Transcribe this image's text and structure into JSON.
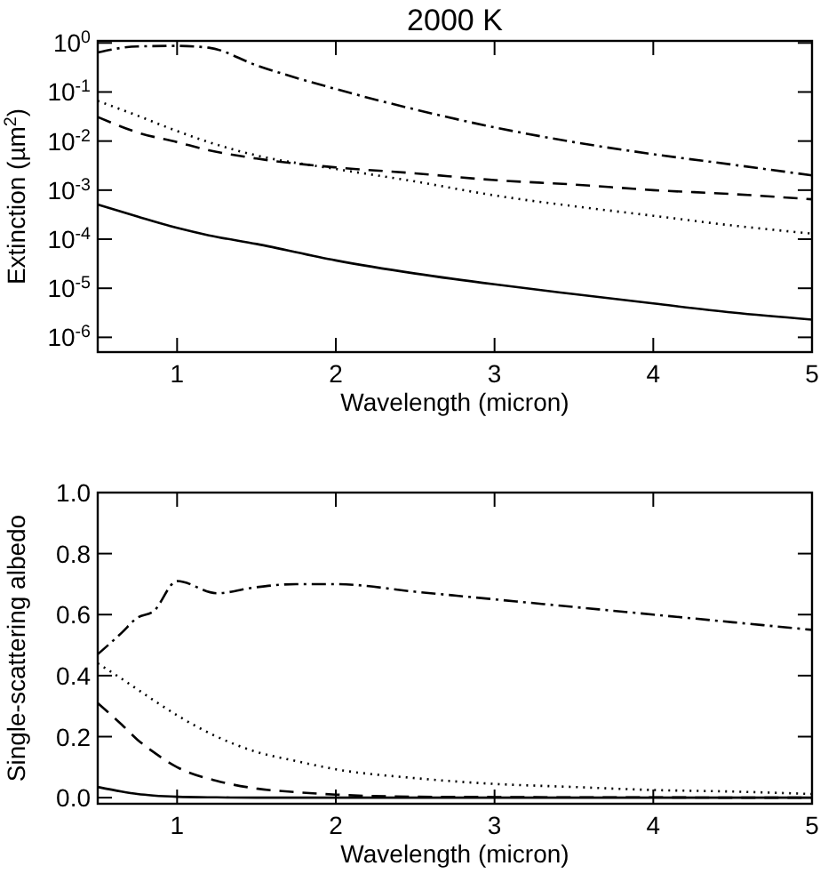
{
  "chart_data": [
    {
      "type": "line",
      "title": "2000 K",
      "xlabel": "Wavelength (micron)",
      "ylabel": "Extinction (µm$^{2}$)",
      "log": "y",
      "xlim": [
        0.5,
        5
      ],
      "xticks": [
        1,
        2,
        3,
        4,
        5
      ],
      "ylim": [
        5e-07,
        1.1
      ],
      "yticks": [
        {
          "value": 1,
          "label": "10$^{0}$"
        },
        {
          "value": 0.1,
          "label": "10$^{-1}$"
        },
        {
          "value": 0.01,
          "label": "10$^{-2}$"
        },
        {
          "value": 0.001,
          "label": "10$^{-3}$"
        },
        {
          "value": 0.0001,
          "label": "10$^{-4}$"
        },
        {
          "value": 1e-05,
          "label": "10$^{-5}$"
        },
        {
          "value": 1e-06,
          "label": "10$^{-6}$"
        }
      ],
      "grid": false,
      "x": [
        0.5,
        0.75,
        1,
        1.2,
        1.5,
        2,
        2.5,
        3,
        3.5,
        4,
        4.5,
        5
      ],
      "series": [
        {
          "color": "#000000",
          "line_style": "solid",
          "values": [
            0.00051,
            0.00029,
            0.00017,
            0.00012,
            8e-05,
            3.7e-05,
            2e-05,
            1.2e-05,
            7.6e-06,
            4.9e-06,
            3.2e-06,
            2.3e-06
          ]
        },
        {
          "color": "#000000",
          "line_style": "dotted",
          "values": [
            0.066,
            0.033,
            0.016,
            0.0095,
            0.0051,
            0.0027,
            0.0015,
            0.00078,
            0.00047,
            0.0003,
            0.00019,
            0.00013
          ]
        },
        {
          "color": "#000000",
          "line_style": "dashed",
          "values": [
            0.031,
            0.015,
            0.0095,
            0.0065,
            0.0044,
            0.0029,
            0.0022,
            0.0016,
            0.0013,
            0.001,
            0.00083,
            0.00065
          ]
        },
        {
          "color": "#000000",
          "line_style": "dashdot",
          "values": [
            0.64,
            0.85,
            0.87,
            0.8,
            0.35,
            0.115,
            0.044,
            0.019,
            0.0095,
            0.0054,
            0.0033,
            0.002
          ]
        }
      ]
    },
    {
      "type": "line",
      "xlabel": "Wavelength (micron)",
      "ylabel": "Single-scattering albedo",
      "xlim": [
        0.5,
        5
      ],
      "xticks": [
        1,
        2,
        3,
        4,
        5
      ],
      "ylim": [
        -0.02,
        1.0
      ],
      "yticks": [
        {
          "value": 0,
          "label": "0.0"
        },
        {
          "value": 0.2,
          "label": "0.2"
        },
        {
          "value": 0.4,
          "label": "0.4"
        },
        {
          "value": 0.6,
          "label": "0.6"
        },
        {
          "value": 0.8,
          "label": "0.8"
        },
        {
          "value": 1,
          "label": "1.0"
        }
      ],
      "grid": false,
      "x": [
        0.5,
        0.65,
        0.75,
        0.85,
        1,
        1.25,
        1.5,
        1.75,
        2,
        2.5,
        3,
        3.5,
        4,
        4.5,
        5
      ],
      "series": [
        {
          "color": "#000000",
          "line_style": "solid",
          "values": [
            0.035,
            0.02,
            0.012,
            0.007,
            0.003,
            0.001,
            0,
            0,
            0,
            0,
            0,
            0,
            0,
            0,
            0
          ]
        },
        {
          "color": "#000000",
          "line_style": "dotted",
          "values": [
            0.44,
            0.39,
            0.355,
            0.32,
            0.27,
            0.2,
            0.15,
            0.12,
            0.093,
            0.064,
            0.045,
            0.035,
            0.025,
            0.02,
            0.012
          ]
        },
        {
          "color": "#000000",
          "line_style": "dashed",
          "values": [
            0.31,
            0.24,
            0.19,
            0.15,
            0.1,
            0.055,
            0.03,
            0.018,
            0.01,
            0.003,
            0.002,
            0.001,
            0.001,
            0,
            0
          ]
        },
        {
          "color": "#000000",
          "line_style": "dashdot",
          "values": [
            0.47,
            0.54,
            0.59,
            0.61,
            0.71,
            0.67,
            0.69,
            0.7,
            0.7,
            0.675,
            0.65,
            0.625,
            0.6,
            0.575,
            0.55
          ]
        }
      ]
    }
  ]
}
